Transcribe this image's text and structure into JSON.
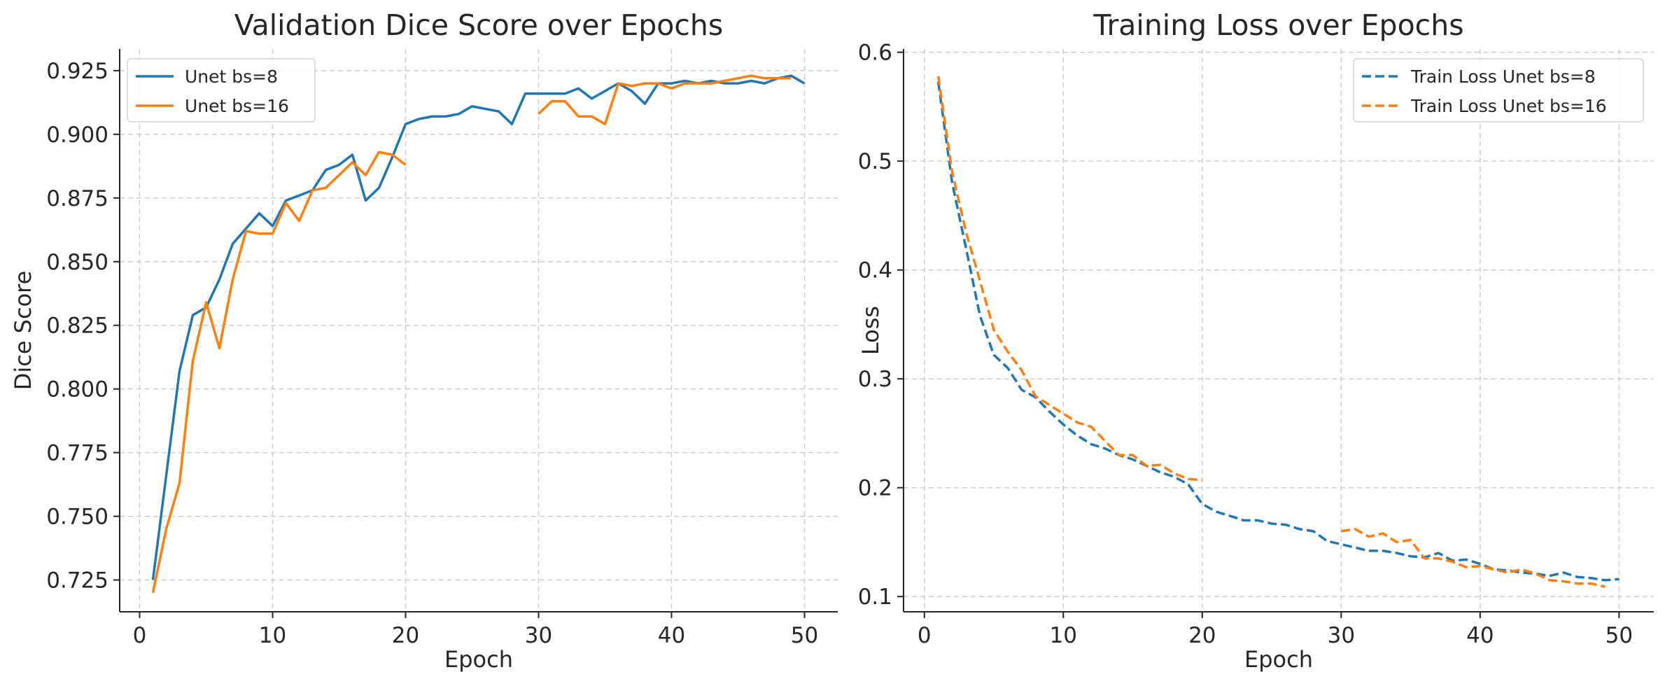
{
  "chart_data": [
    {
      "type": "line",
      "title": "Validation Dice Score over Epochs",
      "xlabel": "Epoch",
      "ylabel": "Dice Score",
      "xlim": [
        -1.5,
        52.5
      ],
      "ylim": [
        0.7125,
        0.9335
      ],
      "xticks": [
        0,
        10,
        20,
        30,
        40,
        50
      ],
      "yticks": [
        0.725,
        0.75,
        0.775,
        0.8,
        0.825,
        0.85,
        0.875,
        0.9,
        0.925
      ],
      "ytick_labels": [
        "0.725",
        "0.750",
        "0.775",
        "0.800",
        "0.825",
        "0.850",
        "0.875",
        "0.900",
        "0.925"
      ],
      "grid": true,
      "legend_position": "top-left",
      "series": [
        {
          "name": "Unet bs=8",
          "color": "#1f77b4",
          "dash": "solid",
          "x": [
            1,
            2,
            3,
            4,
            5,
            6,
            7,
            8,
            9,
            10,
            11,
            12,
            13,
            14,
            15,
            16,
            17,
            18,
            19,
            20,
            21,
            22,
            23,
            24,
            25,
            26,
            27,
            28,
            29,
            30,
            31,
            32,
            33,
            34,
            35,
            36,
            37,
            38,
            39,
            40,
            41,
            42,
            43,
            44,
            45,
            46,
            47,
            48,
            49,
            50
          ],
          "y": [
            0.725,
            0.766,
            0.807,
            0.829,
            0.832,
            0.843,
            0.857,
            0.863,
            0.869,
            0.864,
            0.874,
            0.876,
            0.878,
            0.886,
            0.888,
            0.892,
            0.874,
            0.879,
            0.891,
            0.904,
            0.906,
            0.907,
            0.907,
            0.908,
            0.911,
            0.91,
            0.909,
            0.904,
            0.916,
            0.916,
            0.916,
            0.916,
            0.918,
            0.914,
            0.917,
            0.92,
            0.917,
            0.912,
            0.92,
            0.92,
            0.921,
            0.92,
            0.921,
            0.92,
            0.92,
            0.921,
            0.92,
            0.922,
            0.923,
            0.92
          ]
        },
        {
          "name": "Unet bs=16",
          "color": "#ff7f0e",
          "dash": "solid",
          "x": [
            1,
            2,
            3,
            4,
            5,
            6,
            7,
            8,
            9,
            10,
            11,
            12,
            13,
            14,
            15,
            16,
            17,
            18,
            19,
            20,
            30,
            31,
            32,
            33,
            34,
            35,
            36,
            37,
            38,
            39,
            40,
            41,
            42,
            43,
            44,
            45,
            46,
            47,
            48,
            49
          ],
          "y": [
            0.72,
            0.745,
            0.763,
            0.811,
            0.834,
            0.816,
            0.843,
            0.862,
            0.861,
            0.861,
            0.873,
            0.866,
            0.878,
            0.879,
            0.884,
            0.889,
            0.884,
            0.893,
            0.892,
            0.888,
            0.908,
            0.913,
            0.913,
            0.907,
            0.907,
            0.904,
            0.92,
            0.919,
            0.92,
            0.92,
            0.918,
            0.92,
            0.92,
            0.92,
            0.921,
            0.922,
            0.923,
            0.922,
            0.922,
            0.922
          ]
        }
      ]
    },
    {
      "type": "line",
      "title": "Training Loss over Epochs",
      "xlabel": "Epoch",
      "ylabel": "Loss",
      "xlim": [
        -1.5,
        52.5
      ],
      "ylim": [
        0.086,
        0.603
      ],
      "xticks": [
        0,
        10,
        20,
        30,
        40,
        50
      ],
      "yticks": [
        0.1,
        0.2,
        0.3,
        0.4,
        0.5,
        0.6
      ],
      "ytick_labels": [
        "0.1",
        "0.2",
        "0.3",
        "0.4",
        "0.5",
        "0.6"
      ],
      "grid": true,
      "legend_position": "top-right",
      "series": [
        {
          "name": "Train Loss Unet bs=8",
          "color": "#1f77b4",
          "dash": "dashed",
          "x": [
            1,
            2,
            3,
            4,
            5,
            6,
            7,
            8,
            9,
            10,
            11,
            12,
            13,
            14,
            15,
            16,
            17,
            18,
            19,
            20,
            21,
            22,
            23,
            24,
            25,
            26,
            27,
            28,
            29,
            30,
            31,
            32,
            33,
            34,
            35,
            36,
            37,
            38,
            39,
            40,
            41,
            42,
            43,
            44,
            45,
            46,
            47,
            48,
            49,
            50
          ],
          "y": [
            0.573,
            0.48,
            0.42,
            0.358,
            0.322,
            0.31,
            0.29,
            0.283,
            0.27,
            0.258,
            0.248,
            0.24,
            0.236,
            0.23,
            0.226,
            0.22,
            0.214,
            0.21,
            0.203,
            0.185,
            0.178,
            0.174,
            0.17,
            0.17,
            0.167,
            0.166,
            0.162,
            0.16,
            0.151,
            0.148,
            0.145,
            0.142,
            0.142,
            0.14,
            0.137,
            0.136,
            0.14,
            0.133,
            0.134,
            0.13,
            0.125,
            0.124,
            0.122,
            0.121,
            0.119,
            0.122,
            0.118,
            0.117,
            0.115,
            0.116
          ]
        },
        {
          "name": "Train Loss Unet bs=16",
          "color": "#ff7f0e",
          "dash": "dashed",
          "x": [
            1,
            2,
            3,
            4,
            5,
            6,
            7,
            8,
            9,
            10,
            11,
            12,
            13,
            14,
            15,
            16,
            17,
            18,
            19,
            20,
            30,
            31,
            32,
            33,
            34,
            35,
            36,
            37,
            38,
            39,
            40,
            41,
            42,
            43,
            44,
            45,
            46,
            47,
            48,
            49
          ],
          "y": [
            0.578,
            0.49,
            0.435,
            0.39,
            0.345,
            0.325,
            0.308,
            0.284,
            0.276,
            0.268,
            0.26,
            0.256,
            0.243,
            0.23,
            0.23,
            0.22,
            0.221,
            0.213,
            0.208,
            0.207,
            0.16,
            0.162,
            0.155,
            0.158,
            0.15,
            0.152,
            0.135,
            0.135,
            0.132,
            0.127,
            0.128,
            0.125,
            0.122,
            0.125,
            0.121,
            0.115,
            0.114,
            0.112,
            0.112,
            0.109
          ]
        }
      ]
    }
  ]
}
